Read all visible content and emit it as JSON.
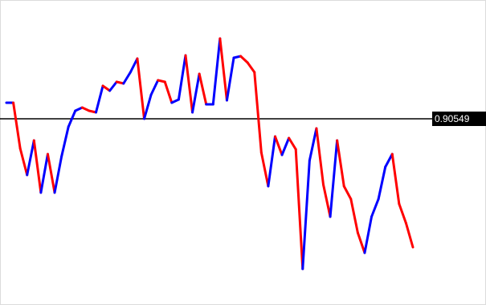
{
  "chart_data": {
    "type": "line",
    "values": [
      0.90589,
      0.90589,
      0.90475,
      0.90409,
      0.90495,
      0.90365,
      0.90461,
      0.90365,
      0.90455,
      0.90529,
      0.90569,
      0.90577,
      0.90569,
      0.90565,
      0.90631,
      0.90619,
      0.90641,
      0.90637,
      0.90665,
      0.90699,
      0.90549,
      0.90609,
      0.90645,
      0.90641,
      0.90589,
      0.90597,
      0.90707,
      0.90565,
      0.90661,
      0.90585,
      0.90585,
      0.90749,
      0.90595,
      0.90701,
      0.90705,
      0.90689,
      0.90665,
      0.90465,
      0.90381,
      0.90505,
      0.90459,
      0.90501,
      0.90473,
      0.90175,
      0.90445,
      0.90525,
      0.90385,
      0.90305,
      0.90495,
      0.90381,
      0.90349,
      0.90265,
      0.90215,
      0.90305,
      0.90349,
      0.90429,
      0.90461,
      0.90337,
      0.90289,
      0.90229
    ],
    "up_color": "#0000ff",
    "down_color": "#ff0000",
    "ylim": [
      0.90085,
      0.90845
    ],
    "level": 0.90549,
    "level_color": "#000000"
  }
}
